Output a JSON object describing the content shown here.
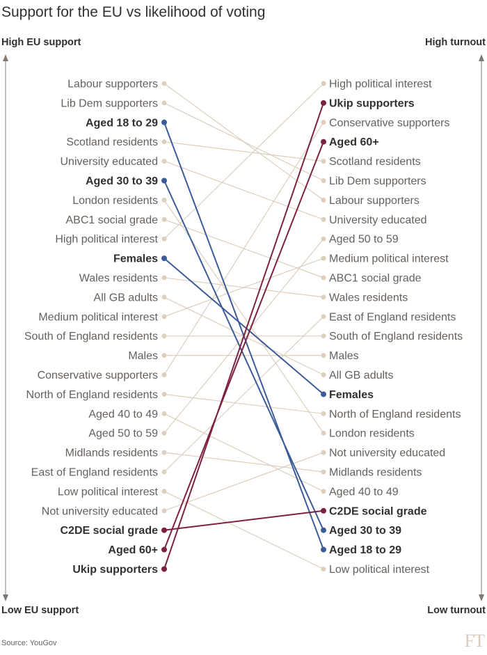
{
  "title": "Support for the EU vs likelihood of voting",
  "left_axis": {
    "top": "High EU support",
    "bottom": "Low EU support"
  },
  "right_axis": {
    "top": "High turnout",
    "bottom": "Low turnout"
  },
  "source": "Source: YouGov",
  "logo": "FT",
  "colors": {
    "default": "#ddcebd",
    "text": "#66605c",
    "highlight_text": "#33302e",
    "young": "#3b5b98",
    "ukip": "#7d2140",
    "axis": "#807973"
  },
  "chart_data": {
    "type": "slope",
    "left_title": "Support for the EU",
    "right_title": "Likelihood of voting",
    "left_order": [
      "Labour supporters",
      "Lib Dem supporters",
      "Aged 18 to 29",
      "Scotland residents",
      "University educated",
      "Aged 30 to 39",
      "London residents",
      "ABC1 social grade",
      "High political interest",
      "Females",
      "Wales residents",
      "All GB adults",
      "Medium political interest",
      "South of England residents",
      "Males",
      "Conservative supporters",
      "North of England residents",
      "Aged 40 to 49",
      "Aged 50 to 59",
      "Midlands residents",
      "East of England residents",
      "Low political interest",
      "Not university educated",
      "C2DE social grade",
      "Aged 60+",
      "Ukip supporters"
    ],
    "right_order": [
      "High political interest",
      "Ukip supporters",
      "Conservative supporters",
      "Aged 60+",
      "Scotland residents",
      "Lib Dem supporters",
      "Labour supporters",
      "University educated",
      "Aged 50 to 59",
      "Medium political interest",
      "ABC1 social grade",
      "Wales residents",
      "East of England residents",
      "South of England residents",
      "Males",
      "All GB adults",
      "Females",
      "North of England residents",
      "London residents",
      "Not university educated",
      "Midlands residents",
      "Aged 40 to 49",
      "C2DE social grade",
      "Aged 30 to 39",
      "Aged 18 to 29",
      "Low political interest"
    ],
    "highlights": {
      "Aged 18 to 29": "#3b5b98",
      "Aged 30 to 39": "#3b5b98",
      "Females": "#3b5b98",
      "Ukip supporters": "#7d2140",
      "Aged 60+": "#7d2140",
      "C2DE social grade": "#7d2140"
    }
  }
}
